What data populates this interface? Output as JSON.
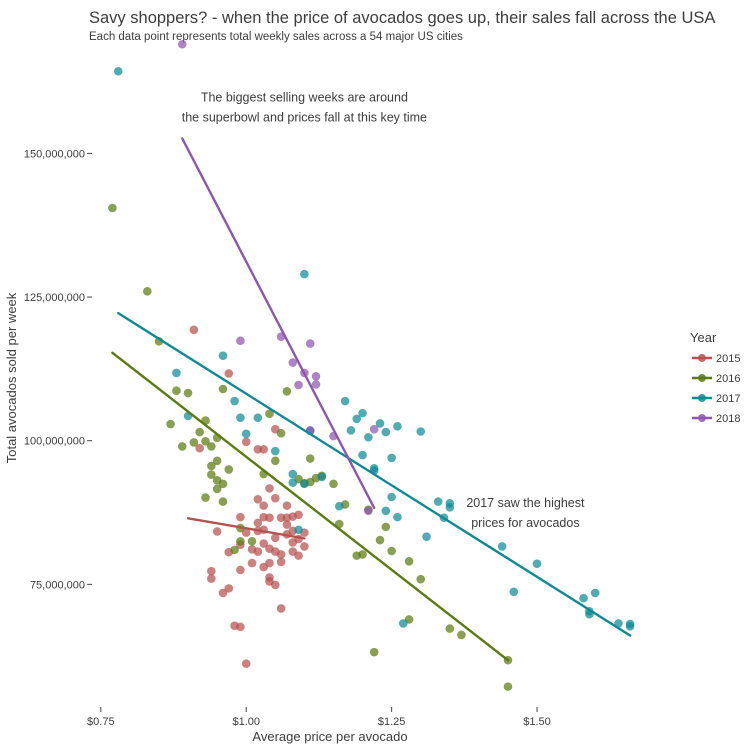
{
  "chart_data": {
    "type": "scatter",
    "title": "Savy shoppers? - when the price of avocados goes up, their sales fall across the USA",
    "subtitle": "Each data point represents total weekly sales across a 54 major US cities",
    "xlabel": "Average price per avocado",
    "ylabel": "Total avocados sold per week",
    "xlim": [
      0.74,
      1.72
    ],
    "ylim": [
      54000000,
      168000000
    ],
    "x_ticks": [
      0.75,
      1.0,
      1.25,
      1.5
    ],
    "x_tick_labels": [
      "$0.75",
      "$1.00",
      "$1.25",
      "$1.50"
    ],
    "y_ticks": [
      75000000,
      100000000,
      125000000,
      150000000
    ],
    "y_tick_labels": [
      "75,000,000",
      "100,000,000",
      "125,000,000",
      "150,000,000"
    ],
    "grid": false,
    "legend": {
      "title": "Year",
      "position": "right",
      "entries": [
        "2015",
        "2016",
        "2017",
        "2018"
      ]
    },
    "annotations": [
      {
        "id": "superbowl",
        "lines": [
          "The biggest selling weeks are around",
          "the superbowl and prices fall at this key time"
        ],
        "x": 1.1,
        "y": 159000000
      },
      {
        "id": "highest-prices",
        "lines": [
          "2017 saw the highest",
          "prices for avocados"
        ],
        "x": 1.48,
        "y": 88500000
      }
    ],
    "series": [
      {
        "name": "2015",
        "color": "#B5514E",
        "fit": {
          "x": [
            0.9,
            1.1
          ],
          "y": [
            86500000,
            83000000
          ]
        },
        "points": [
          [
            0.91,
            119300000
          ],
          [
            0.94,
            77300000
          ],
          [
            0.94,
            76000000
          ],
          [
            0.96,
            73500000
          ],
          [
            0.97,
            74300000
          ],
          [
            0.97,
            111700000
          ],
          [
            0.98,
            67800000
          ],
          [
            0.99,
            67600000
          ],
          [
            0.99,
            77500000
          ],
          [
            0.99,
            81900000
          ],
          [
            0.99,
            86700000
          ],
          [
            1.0,
            61200000
          ],
          [
            1.0,
            84000000
          ],
          [
            1.0,
            99800000
          ],
          [
            1.01,
            78700000
          ],
          [
            1.02,
            80700000
          ],
          [
            1.02,
            84300000
          ],
          [
            1.02,
            85700000
          ],
          [
            1.02,
            89800000
          ],
          [
            1.02,
            98500000
          ],
          [
            1.03,
            78000000
          ],
          [
            1.03,
            82100000
          ],
          [
            1.03,
            84500000
          ],
          [
            1.03,
            86700000
          ],
          [
            1.03,
            88700000
          ],
          [
            1.03,
            98500000
          ],
          [
            1.04,
            75500000
          ],
          [
            1.04,
            76200000
          ],
          [
            1.04,
            78700000
          ],
          [
            1.04,
            81200000
          ],
          [
            1.04,
            86600000
          ],
          [
            1.04,
            91700000
          ],
          [
            1.05,
            74900000
          ],
          [
            1.05,
            80700000
          ],
          [
            1.05,
            83100000
          ],
          [
            1.05,
            90000000
          ],
          [
            1.05,
            102000000
          ],
          [
            1.06,
            70800000
          ],
          [
            1.06,
            78900000
          ],
          [
            1.06,
            80200000
          ],
          [
            1.06,
            86600000
          ],
          [
            1.07,
            83700000
          ],
          [
            1.07,
            86600000
          ],
          [
            1.07,
            88700000
          ],
          [
            1.08,
            80700000
          ],
          [
            1.08,
            82300000
          ],
          [
            1.08,
            84300000
          ],
          [
            1.08,
            86800000
          ],
          [
            1.09,
            80000000
          ],
          [
            1.09,
            82900000
          ],
          [
            1.09,
            87100000
          ],
          [
            1.1,
            81600000
          ],
          [
            1.1,
            84000000
          ],
          [
            0.92,
            98700000
          ],
          [
            0.95,
            84200000
          ],
          [
            0.97,
            80600000
          ],
          [
            1.01,
            81100000
          ],
          [
            1.07,
            85400000
          ]
        ]
      },
      {
        "name": "2016",
        "color": "#5B7A0F",
        "fit": {
          "x": [
            0.77,
            1.45
          ],
          "y": [
            115300000,
            61800000
          ]
        },
        "points": [
          [
            0.77,
            140500000
          ],
          [
            0.83,
            126000000
          ],
          [
            0.85,
            117300000
          ],
          [
            0.87,
            102900000
          ],
          [
            0.88,
            108700000
          ],
          [
            0.89,
            99000000
          ],
          [
            0.9,
            108300000
          ],
          [
            0.91,
            99700000
          ],
          [
            0.92,
            101500000
          ],
          [
            0.93,
            99900000
          ],
          [
            0.93,
            103500000
          ],
          [
            0.94,
            99000000
          ],
          [
            0.94,
            95600000
          ],
          [
            0.94,
            94100000
          ],
          [
            0.95,
            96500000
          ],
          [
            0.95,
            93100000
          ],
          [
            0.95,
            91600000
          ],
          [
            0.95,
            100500000
          ],
          [
            0.96,
            89400000
          ],
          [
            0.96,
            92500000
          ],
          [
            0.97,
            95000000
          ],
          [
            0.98,
            81000000
          ],
          [
            0.99,
            84800000
          ],
          [
            0.99,
            82500000
          ],
          [
            1.01,
            82500000
          ],
          [
            1.03,
            94200000
          ],
          [
            1.04,
            104700000
          ],
          [
            1.05,
            96500000
          ],
          [
            1.06,
            101300000
          ],
          [
            1.07,
            108600000
          ],
          [
            1.09,
            93300000
          ],
          [
            1.1,
            92600000
          ],
          [
            1.11,
            96900000
          ],
          [
            1.11,
            92800000
          ],
          [
            1.12,
            93500000
          ],
          [
            1.13,
            93900000
          ],
          [
            1.15,
            92500000
          ],
          [
            1.16,
            85500000
          ],
          [
            1.17,
            88900000
          ],
          [
            1.19,
            80000000
          ],
          [
            1.2,
            80200000
          ],
          [
            1.21,
            88000000
          ],
          [
            1.22,
            63200000
          ],
          [
            1.23,
            82700000
          ],
          [
            1.24,
            85000000
          ],
          [
            1.25,
            80800000
          ],
          [
            1.28,
            79000000
          ],
          [
            1.28,
            68900000
          ],
          [
            1.3,
            75900000
          ],
          [
            1.35,
            67300000
          ],
          [
            1.37,
            66200000
          ],
          [
            1.45,
            61800000
          ],
          [
            1.45,
            57200000
          ],
          [
            0.96,
            109000000
          ],
          [
            0.93,
            90100000
          ]
        ]
      },
      {
        "name": "2017",
        "color": "#0E8A95",
        "fit": {
          "x": [
            0.78,
            1.66
          ],
          "y": [
            122200000,
            66100000
          ]
        },
        "points": [
          [
            0.78,
            164300000
          ],
          [
            0.88,
            111800000
          ],
          [
            0.9,
            104300000
          ],
          [
            0.96,
            114800000
          ],
          [
            0.98,
            106900000
          ],
          [
            0.99,
            104000000
          ],
          [
            1.0,
            101200000
          ],
          [
            1.02,
            104000000
          ],
          [
            1.05,
            98200000
          ],
          [
            1.08,
            92700000
          ],
          [
            1.1,
            129000000
          ],
          [
            1.1,
            92500000
          ],
          [
            1.11,
            101700000
          ],
          [
            1.13,
            93700000
          ],
          [
            1.16,
            88600000
          ],
          [
            1.17,
            106900000
          ],
          [
            1.18,
            101800000
          ],
          [
            1.19,
            103800000
          ],
          [
            1.2,
            97500000
          ],
          [
            1.2,
            104800000
          ],
          [
            1.21,
            100600000
          ],
          [
            1.22,
            95200000
          ],
          [
            1.22,
            94800000
          ],
          [
            1.23,
            103000000
          ],
          [
            1.24,
            101500000
          ],
          [
            1.24,
            87800000
          ],
          [
            1.25,
            90200000
          ],
          [
            1.25,
            97000000
          ],
          [
            1.26,
            102500000
          ],
          [
            1.26,
            86700000
          ],
          [
            1.27,
            68200000
          ],
          [
            1.3,
            101600000
          ],
          [
            1.31,
            83300000
          ],
          [
            1.33,
            89400000
          ],
          [
            1.34,
            86600000
          ],
          [
            1.35,
            88400000
          ],
          [
            1.35,
            89100000
          ],
          [
            1.44,
            81600000
          ],
          [
            1.46,
            73700000
          ],
          [
            1.5,
            78600000
          ],
          [
            1.58,
            72600000
          ],
          [
            1.59,
            69800000
          ],
          [
            1.59,
            70300000
          ],
          [
            1.6,
            73500000
          ],
          [
            1.64,
            68200000
          ],
          [
            1.66,
            68100000
          ],
          [
            1.66,
            67700000
          ],
          [
            1.09,
            84500000
          ],
          [
            1.08,
            94200000
          ]
        ]
      },
      {
        "name": "2018",
        "color": "#8E56B0",
        "fit": {
          "x": [
            0.89,
            1.22
          ],
          "y": [
            152600000,
            88300000
          ]
        },
        "points": [
          [
            0.89,
            169000000
          ],
          [
            0.99,
            117400000
          ],
          [
            1.06,
            118100000
          ],
          [
            1.08,
            113600000
          ],
          [
            1.09,
            109700000
          ],
          [
            1.1,
            111800000
          ],
          [
            1.11,
            116900000
          ],
          [
            1.12,
            111200000
          ],
          [
            1.12,
            109800000
          ],
          [
            1.11,
            101800000
          ],
          [
            1.15,
            100800000
          ],
          [
            1.22,
            102000000
          ],
          [
            1.21,
            87800000
          ]
        ]
      }
    ]
  }
}
